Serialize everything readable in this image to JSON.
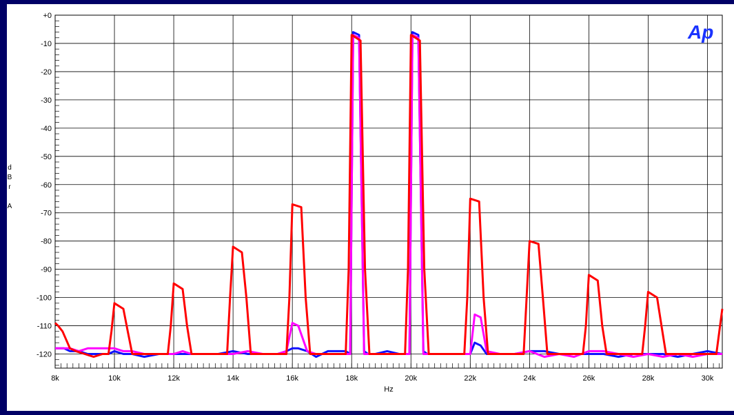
{
  "logo": "Ap",
  "chart_data": {
    "type": "line",
    "xlabel": "Hz",
    "ylabel_lines": [
      "d",
      "B",
      "r",
      "",
      "A"
    ],
    "xlim": [
      8000,
      30500
    ],
    "ylim": [
      -125,
      0
    ],
    "y_ticks": [
      0,
      -10,
      -20,
      -30,
      -40,
      -50,
      -60,
      -70,
      -80,
      -90,
      -100,
      -110,
      -120
    ],
    "y_tick_labels": [
      "+0",
      "-10",
      "-20",
      "-30",
      "-40",
      "-50",
      "-60",
      "-70",
      "-80",
      "-90",
      "-100",
      "-110",
      "-120"
    ],
    "x_ticks": [
      8000,
      10000,
      12000,
      14000,
      16000,
      18000,
      20000,
      22000,
      24000,
      26000,
      28000,
      30000
    ],
    "x_tick_labels": [
      "8k",
      "10k",
      "12k",
      "14k",
      "16k",
      "18k",
      "20k",
      "22k",
      "24k",
      "26k",
      "28k",
      "30k"
    ],
    "grid": true,
    "series": [
      {
        "color": "#1010ff",
        "x": [
          8000,
          8300,
          8500,
          8800,
          9100,
          9500,
          9800,
          10000,
          10300,
          10600,
          11000,
          11500,
          12000,
          12300,
          12600,
          13000,
          13500,
          14000,
          14500,
          15000,
          15500,
          15800,
          16000,
          16200,
          16500,
          16800,
          17200,
          17600,
          17800,
          17950,
          18050,
          18250,
          18420,
          18550,
          18800,
          19200,
          19600,
          19950,
          20050,
          20250,
          20420,
          20550,
          20800,
          21200,
          21600,
          21800,
          22000,
          22150,
          22350,
          22550,
          23000,
          23500,
          24000,
          24500,
          25000,
          25500,
          26000,
          26500,
          27000,
          27500,
          28000,
          28500,
          29000,
          29500,
          30000,
          30500
        ],
        "values": [
          -118,
          -118,
          -119,
          -119,
          -120,
          -120,
          -120,
          -119,
          -120,
          -120,
          -121,
          -120,
          -120,
          -120,
          -120,
          -120,
          -120,
          -119,
          -120,
          -120,
          -120,
          -119,
          -118,
          -118,
          -119,
          -121,
          -119,
          -119,
          -119,
          -120,
          -6,
          -7,
          -119,
          -120,
          -120,
          -119,
          -120,
          -120,
          -6,
          -7,
          -119,
          -120,
          -120,
          -120,
          -120,
          -120,
          -120,
          -116,
          -117,
          -120,
          -120,
          -120,
          -119,
          -119,
          -120,
          -120,
          -120,
          -120,
          -121,
          -120,
          -120,
          -120,
          -121,
          -120,
          -119,
          -120
        ]
      },
      {
        "color": "#ff00ff",
        "x": [
          8000,
          8300,
          8500,
          8800,
          9100,
          9500,
          9800,
          10000,
          10300,
          10600,
          11000,
          11500,
          12000,
          12300,
          12600,
          13000,
          13500,
          14000,
          14500,
          15000,
          15500,
          15800,
          16000,
          16200,
          16500,
          16800,
          17200,
          17600,
          17800,
          17950,
          18050,
          18250,
          18420,
          18550,
          18800,
          19200,
          19600,
          19950,
          20050,
          20250,
          20420,
          20550,
          20800,
          21200,
          21600,
          21800,
          22000,
          22150,
          22350,
          22550,
          23000,
          23500,
          24000,
          24500,
          25000,
          25500,
          26000,
          26500,
          27000,
          27500,
          28000,
          28500,
          29000,
          29500,
          30000,
          30500
        ],
        "values": [
          -118,
          -118,
          -118,
          -119,
          -118,
          -118,
          -118,
          -118,
          -119,
          -119,
          -120,
          -120,
          -120,
          -119,
          -120,
          -120,
          -120,
          -120,
          -119,
          -120,
          -120,
          -119,
          -109,
          -110,
          -119,
          -120,
          -120,
          -120,
          -120,
          -120,
          -7,
          -8,
          -120,
          -120,
          -120,
          -120,
          -120,
          -120,
          -7,
          -8,
          -120,
          -120,
          -120,
          -120,
          -120,
          -120,
          -120,
          -106,
          -107,
          -119,
          -120,
          -120,
          -119,
          -121,
          -120,
          -121,
          -119,
          -119,
          -120,
          -121,
          -120,
          -121,
          -120,
          -121,
          -120,
          -120
        ]
      },
      {
        "color": "#ff0000",
        "x": [
          8000,
          8100,
          8250,
          8500,
          8700,
          9000,
          9300,
          9600,
          9800,
          9900,
          10000,
          10300,
          10450,
          10600,
          11000,
          11500,
          11800,
          11900,
          12000,
          12300,
          12450,
          12600,
          13000,
          13500,
          13800,
          13900,
          14000,
          14300,
          14450,
          14600,
          15000,
          15500,
          15800,
          15900,
          16000,
          16300,
          16450,
          16600,
          17000,
          17500,
          17800,
          17900,
          18000,
          18300,
          18450,
          18600,
          19000,
          19500,
          19800,
          19900,
          20000,
          20300,
          20450,
          20600,
          21000,
          21500,
          21800,
          21900,
          22000,
          22300,
          22450,
          22600,
          23000,
          23500,
          23800,
          23900,
          24000,
          24300,
          24450,
          24600,
          25000,
          25500,
          25800,
          25900,
          26000,
          26300,
          26450,
          26600,
          27000,
          27500,
          27800,
          27900,
          28000,
          28300,
          28450,
          28600,
          29000,
          29500,
          29800,
          30000,
          30300,
          30500
        ],
        "values": [
          -109,
          -110,
          -112,
          -118,
          -119,
          -120,
          -121,
          -120,
          -120,
          -112,
          -102,
          -104,
          -112,
          -120,
          -120,
          -120,
          -120,
          -110,
          -95,
          -97,
          -110,
          -120,
          -120,
          -120,
          -120,
          -100,
          -82,
          -84,
          -100,
          -120,
          -120,
          -120,
          -120,
          -100,
          -67,
          -68,
          -100,
          -120,
          -120,
          -120,
          -120,
          -90,
          -7,
          -9,
          -90,
          -120,
          -120,
          -120,
          -120,
          -90,
          -7,
          -9,
          -90,
          -120,
          -120,
          -120,
          -120,
          -100,
          -65,
          -66,
          -100,
          -120,
          -120,
          -120,
          -120,
          -100,
          -80,
          -81,
          -100,
          -120,
          -120,
          -120,
          -120,
          -110,
          -92,
          -94,
          -110,
          -120,
          -120,
          -120,
          -120,
          -110,
          -98,
          -100,
          -110,
          -120,
          -120,
          -120,
          -120,
          -120,
          -120,
          -104
        ]
      }
    ]
  }
}
